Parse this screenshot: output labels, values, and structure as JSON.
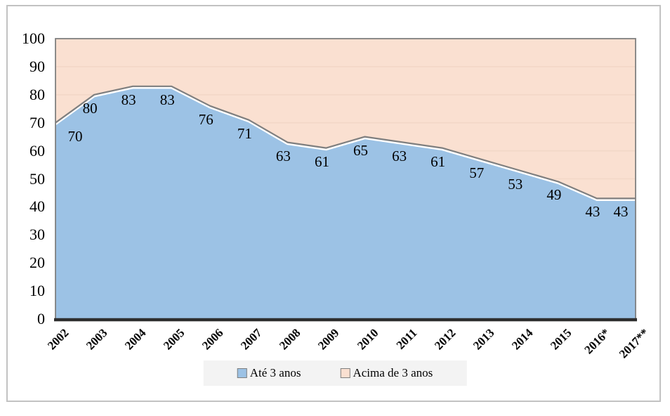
{
  "chart_data": {
    "type": "area",
    "stacked": true,
    "title": "",
    "xlabel": "",
    "ylabel": "",
    "categories": [
      "2002",
      "2003",
      "2004",
      "2005",
      "2006",
      "2007",
      "2008",
      "2009",
      "2010",
      "2011",
      "2012",
      "2013",
      "2014",
      "2015",
      "2016*",
      "2017**"
    ],
    "series": [
      {
        "name": "Até 3 anos",
        "color": "#9CC2E5",
        "border_color": "#7F7F7F",
        "values": [
          70,
          80,
          83,
          83,
          76,
          71,
          63,
          61,
          65,
          63,
          61,
          57,
          53,
          49,
          43,
          43
        ],
        "data_labels_visible": true
      },
      {
        "name": "Acima de 3 anos",
        "color": "#FAE0D1",
        "border_color": "#7F7F7F",
        "values": [
          30,
          20,
          17,
          17,
          24,
          29,
          37,
          39,
          35,
          37,
          39,
          43,
          47,
          51,
          57,
          57
        ],
        "data_labels_visible": false
      }
    ],
    "ylim": [
      0,
      100
    ],
    "yticks": [
      0,
      10,
      20,
      30,
      40,
      50,
      60,
      70,
      80,
      90,
      100
    ],
    "grid": "horizontal-subtle",
    "legend_position": "bottom"
  },
  "legend": {
    "items": [
      {
        "label": "Até 3 anos",
        "color": "#9CC2E5"
      },
      {
        "label": "Acima de 3 anos",
        "color": "#FAE0D1"
      }
    ]
  },
  "colors": {
    "series1_fill": "#9CC2E5",
    "series2_fill": "#FAE0D1",
    "boundary_line": "#7F7F7F",
    "boundary_underline": "#FFFFFF",
    "plot_border": "#808080",
    "x_axis_line": "#2E2E2E",
    "gridline": "#EFD3C1",
    "legend_background": "#F3F3F3",
    "outer_border": "#C2C2C2",
    "text": "#000000",
    "background": "#FFFFFF"
  }
}
